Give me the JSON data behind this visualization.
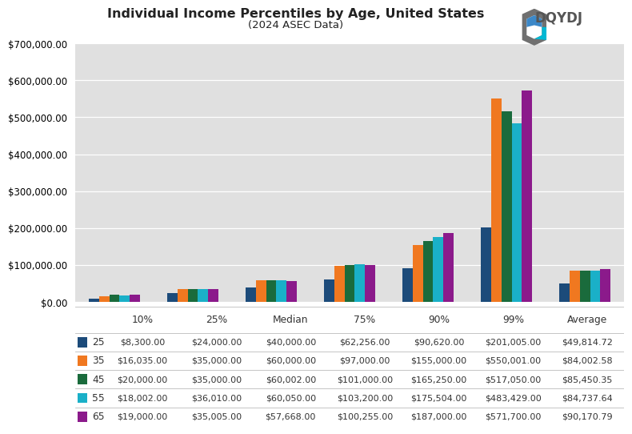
{
  "title": "Individual Income Percentiles by Age, United States",
  "subtitle": "(2024 ASEC Data)",
  "categories": [
    "10%",
    "25%",
    "Median",
    "75%",
    "90%",
    "99%",
    "Average"
  ],
  "ages": [
    "25",
    "35",
    "45",
    "55",
    "65"
  ],
  "colors": [
    "#1c4b7a",
    "#f07820",
    "#1a6b3c",
    "#1ab0c8",
    "#8b1a8b"
  ],
  "values": {
    "25": [
      8300,
      24000,
      40000,
      62256,
      90620,
      201005,
      49814.72
    ],
    "35": [
      16035,
      35000,
      60000,
      97000,
      155000,
      550001,
      84002.58
    ],
    "45": [
      20000,
      35000,
      60002,
      101000,
      165250,
      517050,
      85450.35
    ],
    "55": [
      18002,
      36010,
      60050,
      103200,
      175504,
      483429,
      84737.64
    ],
    "65": [
      19000,
      35005,
      57668,
      100255,
      187000,
      571700,
      90170.79
    ]
  },
  "table_values": {
    "25": [
      "$8,300.00",
      "$24,000.00",
      "$40,000.00",
      "$62,256.00",
      "$90,620.00",
      "$201,005.00",
      "$49,814.72"
    ],
    "35": [
      "$16,035.00",
      "$35,000.00",
      "$60,000.00",
      "$97,000.00",
      "$155,000.00",
      "$550,001.00",
      "$84,002.58"
    ],
    "45": [
      "$20,000.00",
      "$35,000.00",
      "$60,002.00",
      "$101,000.00",
      "$165,250.00",
      "$517,050.00",
      "$85,450.35"
    ],
    "55": [
      "$18,002.00",
      "$36,010.00",
      "$60,050.00",
      "$103,200.00",
      "$175,504.00",
      "$483,429.00",
      "$84,737.64"
    ],
    "65": [
      "$19,000.00",
      "$35,005.00",
      "$57,668.00",
      "$100,255.00",
      "$187,000.00",
      "$571,700.00",
      "$90,170.79"
    ]
  },
  "ylim": [
    0,
    700000
  ],
  "yticks": [
    0,
    100000,
    200000,
    300000,
    400000,
    500000,
    600000,
    700000
  ],
  "plot_background": "#e0e0e0",
  "bar_width": 0.13
}
